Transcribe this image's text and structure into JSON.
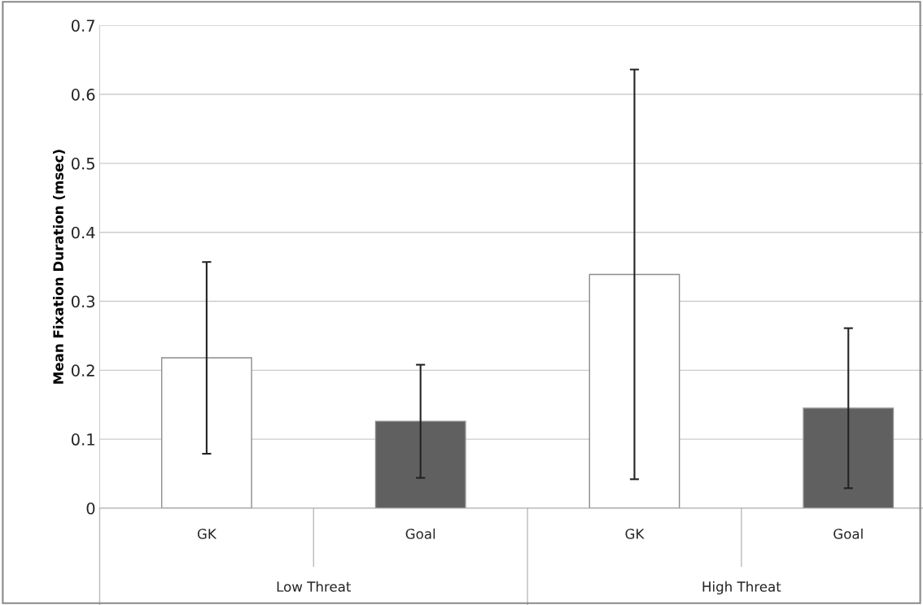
{
  "chart_data": {
    "type": "bar",
    "ylabel": "Mean Fixation Duration (msec)",
    "categories": [
      "GK",
      "Goal",
      "GK",
      "Goal"
    ],
    "values": [
      0.218,
      0.126,
      0.339,
      0.145
    ],
    "colors": [
      "#ffffff",
      "#606060",
      "#ffffff",
      "#606060"
    ],
    "errors": [
      [
        0.079,
        0.357
      ],
      [
        0.044,
        0.208
      ],
      [
        0.042,
        0.636
      ],
      [
        0.029,
        0.261
      ]
    ],
    "annotations": [
      "Low Threat",
      "High Threat"
    ],
    "ylim": [
      0,
      0.7
    ],
    "yticks": [
      0,
      0.1,
      0.2,
      0.3,
      0.4,
      0.5,
      0.6,
      0.7
    ],
    "grid": "y"
  }
}
